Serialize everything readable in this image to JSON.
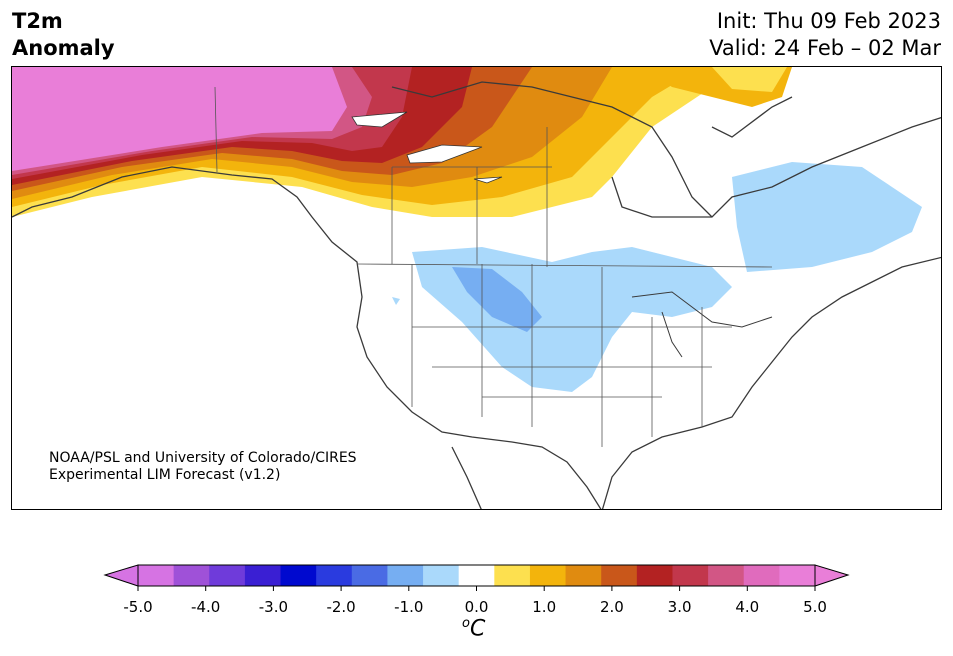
{
  "header": {
    "title_line1": "T2m",
    "title_line2": "Anomaly",
    "init_text": "Init: Thu 09 Feb 2023",
    "valid_text": "Valid: 24 Feb – 02 Mar"
  },
  "map": {
    "region": "North America",
    "variable": "2m temperature anomaly",
    "credit_line1": "NOAA/PSL and University of Colorado/CIRES",
    "credit_line2": "Experimental LIM Forecast (v1.2)"
  },
  "colorbar": {
    "unit_base": "C",
    "unit_sup": "o",
    "levels": [
      -5.0,
      -4.5,
      -4.0,
      -3.5,
      -3.0,
      -2.5,
      -2.0,
      -1.5,
      -1.0,
      -0.5,
      0.5,
      1.0,
      1.5,
      2.0,
      2.5,
      3.0,
      3.5,
      4.0,
      4.5,
      5.0
    ],
    "colors": [
      "#d673e3",
      "#9f51d8",
      "#6f3bda",
      "#3a1fd3",
      "#0009cf",
      "#2a3bdf",
      "#4a6be4",
      "#76aef2",
      "#aad9fb",
      "#ffffff",
      "#fde04f",
      "#f3b40c",
      "#e08b10",
      "#c9571a",
      "#b32222",
      "#c2374c",
      "#d25685",
      "#e06bbd",
      "#e97ed8"
    ],
    "tick_labels": [
      "-5.0",
      "-4.0",
      "-3.0",
      "-2.0",
      "-1.0",
      "0.0",
      "1.0",
      "2.0",
      "3.0",
      "4.0",
      "5.0"
    ]
  }
}
